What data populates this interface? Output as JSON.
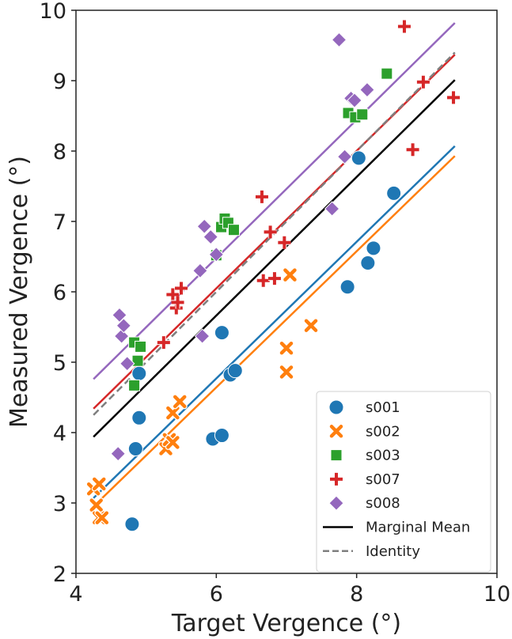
{
  "chart_data": {
    "type": "scatter",
    "xlabel": "Target Vergence (°)",
    "ylabel": "Measured Vergence (°)",
    "xlim": [
      4,
      10
    ],
    "ylim": [
      2,
      10
    ],
    "x_ticks": [
      "4",
      "6",
      "8",
      "10"
    ],
    "y_ticks": [
      "2",
      "3",
      "4",
      "5",
      "6",
      "7",
      "8",
      "9",
      "10"
    ],
    "legend_position": "lower right",
    "series": [
      {
        "name": "s001",
        "color": "#1f77b4",
        "marker": "circle",
        "points": [
          [
            4.8,
            2.7
          ],
          [
            4.85,
            3.77
          ],
          [
            4.9,
            4.21
          ],
          [
            4.9,
            4.84
          ],
          [
            5.95,
            3.91
          ],
          [
            6.08,
            3.96
          ],
          [
            6.08,
            5.42
          ],
          [
            6.2,
            4.82
          ],
          [
            6.27,
            4.88
          ],
          [
            7.87,
            6.07
          ],
          [
            8.03,
            7.9
          ],
          [
            8.16,
            6.41
          ],
          [
            8.24,
            6.62
          ],
          [
            8.53,
            7.4
          ]
        ],
        "fit": [
          [
            4.25,
            3.07
          ],
          [
            9.4,
            8.07
          ]
        ]
      },
      {
        "name": "s002",
        "color": "#ff7f0e",
        "marker": "x",
        "points": [
          [
            4.25,
            3.2
          ],
          [
            4.29,
            2.97
          ],
          [
            4.33,
            3.27
          ],
          [
            4.33,
            2.79
          ],
          [
            4.37,
            2.79
          ],
          [
            5.28,
            3.77
          ],
          [
            5.33,
            3.9
          ],
          [
            5.38,
            3.86
          ],
          [
            5.38,
            4.28
          ],
          [
            5.48,
            4.44
          ],
          [
            7.0,
            5.2
          ],
          [
            7.0,
            4.86
          ],
          [
            7.05,
            6.24
          ],
          [
            7.35,
            5.52
          ]
        ],
        "fit": [
          [
            4.25,
            2.95
          ],
          [
            9.4,
            7.93
          ]
        ]
      },
      {
        "name": "s003",
        "color": "#2ca02c",
        "marker": "square",
        "points": [
          [
            4.83,
            5.28
          ],
          [
            4.83,
            4.67
          ],
          [
            4.88,
            5.02
          ],
          [
            4.92,
            5.22
          ],
          [
            6.0,
            6.52
          ],
          [
            6.07,
            6.92
          ],
          [
            6.12,
            7.04
          ],
          [
            6.17,
            6.98
          ],
          [
            6.25,
            6.88
          ],
          [
            7.88,
            8.54
          ],
          [
            7.98,
            8.48
          ],
          [
            8.08,
            8.52
          ],
          [
            8.43,
            9.1
          ]
        ],
        "fit": []
      },
      {
        "name": "s007",
        "color": "#d62728",
        "marker": "plus",
        "points": [
          [
            5.25,
            5.28
          ],
          [
            5.38,
            5.96
          ],
          [
            5.43,
            5.77
          ],
          [
            5.45,
            5.85
          ],
          [
            5.5,
            6.05
          ],
          [
            6.65,
            7.35
          ],
          [
            6.67,
            6.16
          ],
          [
            6.77,
            6.85
          ],
          [
            6.83,
            6.19
          ],
          [
            6.97,
            6.7
          ],
          [
            8.68,
            9.77
          ],
          [
            8.8,
            8.02
          ],
          [
            8.95,
            8.98
          ],
          [
            9.38,
            8.76
          ]
        ],
        "fit": [
          [
            4.25,
            4.34
          ],
          [
            9.4,
            9.37
          ]
        ]
      },
      {
        "name": "s008",
        "color": "#9467bd",
        "marker": "diamond",
        "points": [
          [
            4.6,
            3.7
          ],
          [
            4.62,
            5.67
          ],
          [
            4.65,
            5.37
          ],
          [
            4.68,
            5.52
          ],
          [
            4.73,
            4.98
          ],
          [
            5.77,
            6.3
          ],
          [
            5.8,
            5.37
          ],
          [
            5.83,
            6.93
          ],
          [
            5.92,
            6.78
          ],
          [
            6.0,
            6.53
          ],
          [
            7.65,
            7.18
          ],
          [
            7.83,
            7.92
          ],
          [
            7.92,
            8.75
          ],
          [
            7.97,
            8.72
          ],
          [
            8.15,
            8.87
          ],
          [
            7.75,
            9.58
          ]
        ],
        "fit": [
          [
            4.25,
            4.76
          ],
          [
            9.4,
            9.82
          ]
        ]
      }
    ],
    "reference_lines": [
      {
        "name": "Marginal Mean",
        "color": "#000000",
        "style": "solid",
        "points": [
          [
            4.25,
            3.94
          ],
          [
            9.4,
            9.01
          ]
        ]
      },
      {
        "name": "Identity",
        "color": "#7f7f7f",
        "style": "dashed",
        "points": [
          [
            4.25,
            4.25
          ],
          [
            9.4,
            9.4
          ]
        ]
      }
    ]
  }
}
